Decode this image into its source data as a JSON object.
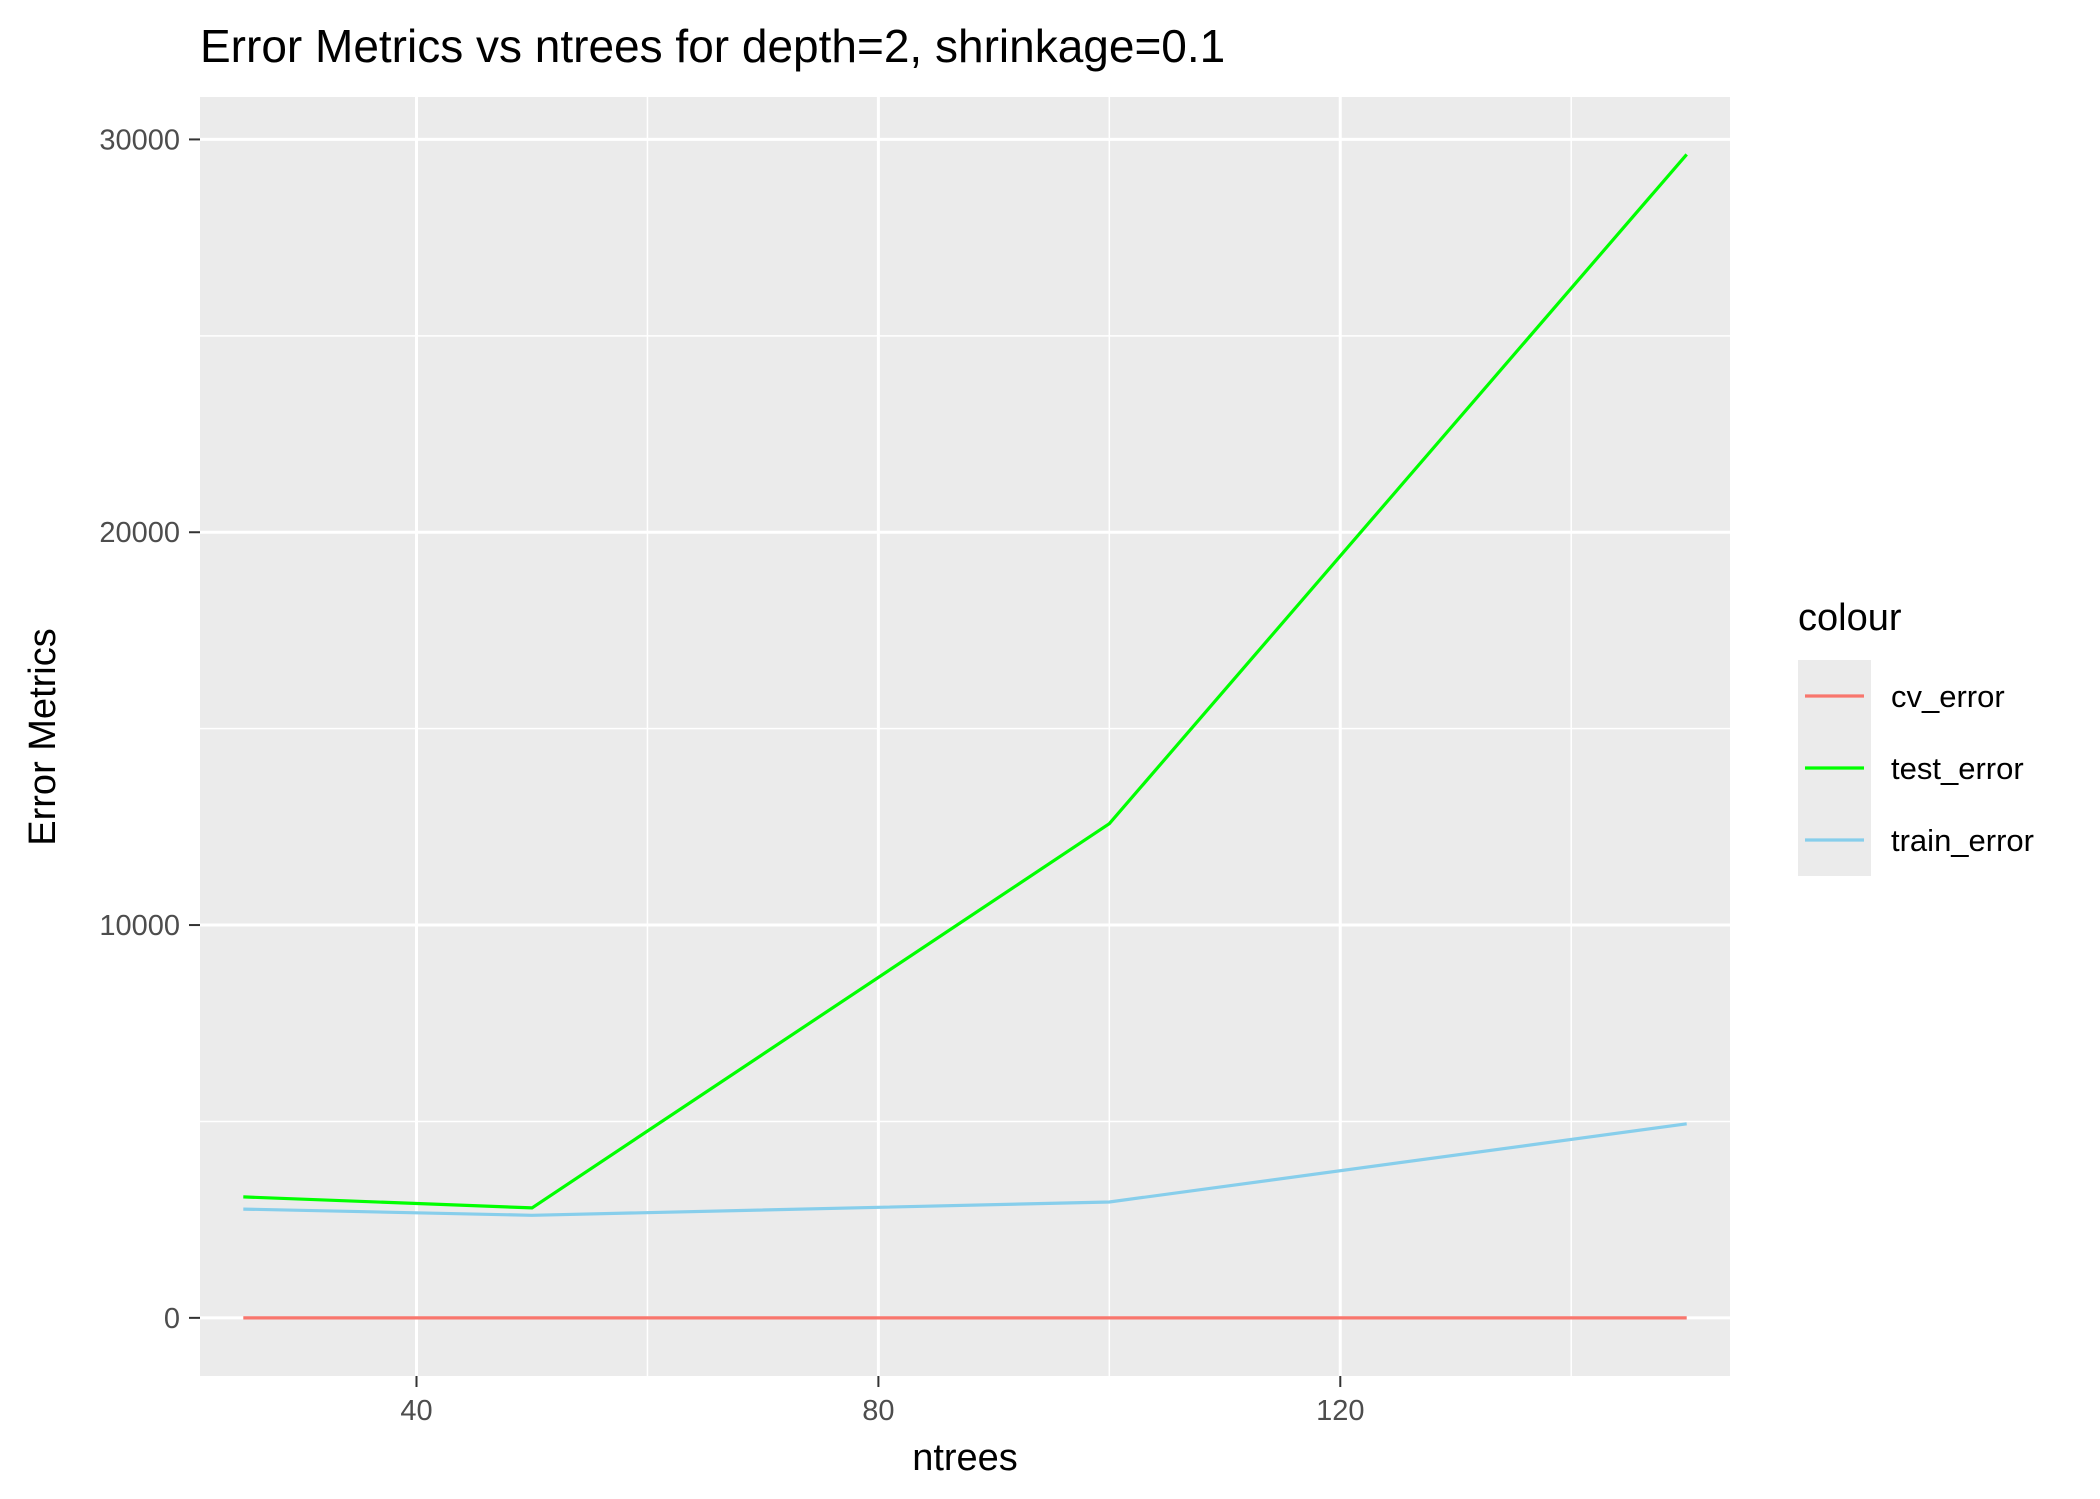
{
  "chart_data": {
    "type": "line",
    "title": "Error Metrics vs ntrees for depth=2, shrinkage=0.1",
    "xlabel": "ntrees",
    "ylabel": "Error Metrics",
    "x": [
      25,
      50,
      100,
      150
    ],
    "xlim": [
      21.25,
      153.75
    ],
    "ylim": [
      -1480,
      31080
    ],
    "x_ticks": [
      40,
      80,
      120
    ],
    "x_tick_labels": [
      "40",
      "80",
      "120"
    ],
    "x_minor_ticks": [
      20,
      60,
      100,
      140
    ],
    "y_ticks": [
      0,
      10000,
      20000,
      30000
    ],
    "y_tick_labels": [
      "0",
      "10000",
      "20000",
      "30000"
    ],
    "y_minor_ticks": [
      5000,
      15000,
      25000
    ],
    "grid": true,
    "legend": {
      "title": "colour",
      "position": "right"
    },
    "series": [
      {
        "name": "cv_error",
        "color": "#F8766D",
        "values": [
          0,
          0,
          0,
          0
        ]
      },
      {
        "name": "test_error",
        "color": "#00FF00",
        "values": [
          3080,
          2800,
          12580,
          29620
        ]
      },
      {
        "name": "train_error",
        "color": "#87CEEB",
        "values": [
          2770,
          2610,
          2950,
          4940
        ]
      }
    ],
    "colors": {
      "panel_background": "#EBEBEB",
      "grid": "#FFFFFF",
      "tick_text": "#4D4D4D",
      "tick_mark": "#333333"
    }
  }
}
